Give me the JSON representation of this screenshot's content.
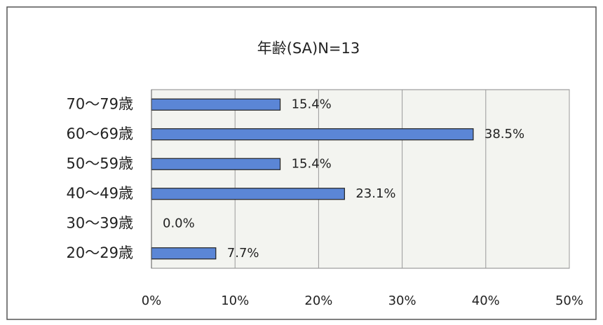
{
  "chart_data": {
    "type": "bar",
    "orientation": "horizontal",
    "title": "年齢(SA)N=13",
    "categories": [
      "70～79歳",
      "60～69歳",
      "50～59歳",
      "40～49歳",
      "30～39歳",
      "20～29歳"
    ],
    "values": [
      15.4,
      38.5,
      15.4,
      23.1,
      0.0,
      7.7
    ],
    "value_labels": [
      "15.4%",
      "38.5%",
      "15.4%",
      "23.1%",
      "0.0%",
      "7.7%"
    ],
    "color": "#5b86d6",
    "xlim": [
      0,
      50
    ],
    "xticks": [
      {
        "value": 0,
        "label": "0%"
      },
      {
        "value": 10,
        "label": "10%"
      },
      {
        "value": 20,
        "label": "20%"
      },
      {
        "value": 30,
        "label": "30%"
      },
      {
        "value": 40,
        "label": "40%"
      },
      {
        "value": 50,
        "label": "50%"
      }
    ],
    "grid": true
  }
}
